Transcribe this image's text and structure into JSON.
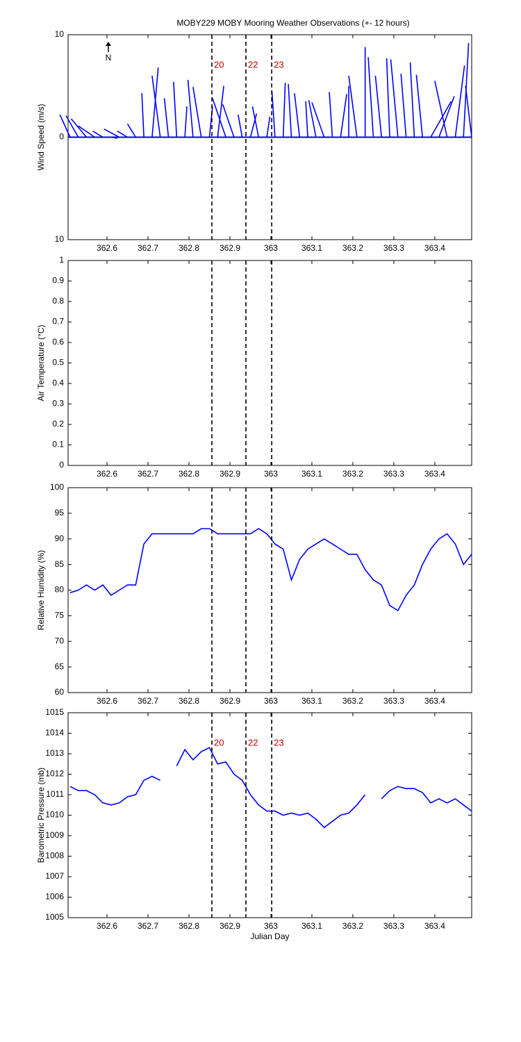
{
  "chart_data": [
    {
      "type": "stick",
      "title": "MOBY229 MOBY Mooring Weather Observations (+- 12 hours)",
      "ylabel": "Wind Speed (m/s)",
      "north_label": "N",
      "x": [
        362.51,
        362.53,
        362.55,
        362.57,
        362.59,
        362.61,
        362.63,
        362.65,
        362.67,
        362.69,
        362.71,
        362.73,
        362.75,
        362.77,
        362.79,
        362.81,
        362.83,
        362.85,
        362.87,
        362.89,
        362.91,
        362.93,
        362.95,
        362.97,
        362.99,
        363.01,
        363.03,
        363.05,
        363.07,
        363.09,
        363.11,
        363.13,
        363.15,
        363.17,
        363.19,
        363.21,
        363.23,
        363.25,
        363.27,
        363.29,
        363.31,
        363.33,
        363.35,
        363.37,
        363.39,
        363.41,
        363.43,
        363.45,
        363.47,
        363.49
      ],
      "u": [
        -1,
        -1.2,
        -1.5,
        -1.6,
        -1,
        0.6,
        -1.5,
        -1,
        -0.8,
        -0.2,
        0.6,
        -0.8,
        -0.4,
        -0.3,
        0.2,
        -0.5,
        -0.8,
        0.3,
        0.6,
        -1.3,
        -1.1,
        -0.4,
        0.6,
        -0.6,
        0.3,
        -0.3,
        0.2,
        -0.3,
        -0.5,
        -0.2,
        -0.7,
        -1.2,
        -0.3,
        0.6,
        0,
        -0.8,
        0,
        -0.5,
        -0.6,
        -0.3,
        -0.7,
        -0.5,
        -0.4,
        -0.6,
        2,
        1.5,
        -1.2,
        0.9,
        0.5,
        -0.6
      ],
      "v": [
        2.2,
        2.1,
        1.8,
        1.1,
        0.6,
        -0.1,
        0.8,
        0.6,
        1.3,
        4.3,
        6.8,
        6,
        3.8,
        5.4,
        3,
        5.6,
        4.9,
        3,
        5,
        3.8,
        3.2,
        2.2,
        2.3,
        3,
        2,
        4.5,
        5.3,
        5.2,
        4.3,
        3.5,
        3.6,
        3.4,
        4.4,
        4.2,
        5,
        6,
        8.8,
        7.8,
        6,
        7.7,
        7.6,
        6.2,
        7.3,
        6.1,
        3.5,
        4,
        5.5,
        7,
        9.2,
        5
      ],
      "color": "#0000ff",
      "xlim": [
        362.505,
        363.49
      ],
      "xticks": [
        362.6,
        362.7,
        362.8,
        362.9,
        363,
        363.1,
        363.2,
        363.3,
        363.4
      ],
      "ylim": [
        -10,
        10
      ],
      "yticks": [
        {
          "value": -10,
          "label": "10"
        },
        0,
        10
      ],
      "vlines": [
        362.856,
        362.939,
        363.002
      ],
      "vline_labels": [
        "20",
        "22",
        "23"
      ]
    },
    {
      "type": "line",
      "ylabel": "Air Temperature (°C)",
      "xlim": [
        362.505,
        363.49
      ],
      "xticks": [
        362.6,
        362.7,
        362.8,
        362.9,
        363,
        363.1,
        363.2,
        363.3,
        363.4
      ],
      "ylim": [
        0,
        1
      ],
      "yticks": [
        0,
        0.1,
        0.2,
        0.3,
        0.4,
        0.5,
        0.6,
        0.7,
        0.8,
        0.9,
        1
      ],
      "vlines": [
        362.856,
        362.939,
        363.002
      ]
    },
    {
      "type": "line",
      "ylabel": "Relative Humidity (%)",
      "color": "#0000ff",
      "x": [
        362.51,
        362.53,
        362.55,
        362.57,
        362.59,
        362.61,
        362.63,
        362.65,
        362.67,
        362.69,
        362.71,
        362.73,
        362.75,
        362.77,
        362.79,
        362.81,
        362.83,
        362.85,
        362.87,
        362.89,
        362.91,
        362.93,
        362.95,
        362.97,
        362.99,
        363.01,
        363.03,
        363.05,
        363.07,
        363.09,
        363.11,
        363.13,
        363.15,
        363.17,
        363.19,
        363.21,
        363.23,
        363.25,
        363.27,
        363.29,
        363.31,
        363.33,
        363.35,
        363.37,
        363.39,
        363.41,
        363.43,
        363.45,
        363.47,
        363.49
      ],
      "values": [
        79.5,
        80,
        81,
        80,
        81,
        79,
        80,
        81,
        81,
        89,
        91,
        91,
        91,
        91,
        91,
        91,
        92,
        92,
        91,
        91,
        91,
        91,
        91,
        92,
        91,
        89,
        88,
        82,
        86,
        88,
        89,
        90,
        89,
        88,
        87,
        87,
        84,
        82,
        81,
        77,
        76,
        79,
        81,
        85,
        88,
        90,
        91,
        89,
        85,
        87
      ],
      "xlim": [
        362.505,
        363.49
      ],
      "xticks": [
        362.6,
        362.7,
        362.8,
        362.9,
        363,
        363.1,
        363.2,
        363.3,
        363.4
      ],
      "ylim": [
        60,
        100
      ],
      "yticks": [
        60,
        65,
        70,
        75,
        80,
        85,
        90,
        95,
        100
      ],
      "vlines": [
        362.856,
        362.939,
        363.002
      ]
    },
    {
      "type": "line",
      "ylabel": "Barometric Pressure (mb)",
      "xlabel": "Julian Day",
      "color": "#0000ff",
      "x": [
        362.51,
        362.53,
        362.55,
        362.57,
        362.59,
        362.61,
        362.63,
        362.65,
        362.67,
        362.69,
        362.71,
        362.73,
        362.75,
        362.77,
        362.79,
        362.81,
        362.83,
        362.85,
        362.87,
        362.89,
        362.91,
        362.93,
        362.95,
        362.97,
        362.99,
        363.01,
        363.03,
        363.05,
        363.07,
        363.09,
        363.11,
        363.13,
        363.15,
        363.17,
        363.19,
        363.21,
        363.23,
        363.25,
        363.27,
        363.29,
        363.31,
        363.33,
        363.35,
        363.37,
        363.39,
        363.41,
        363.43,
        363.45,
        363.47,
        363.49
      ],
      "values": [
        1011.4,
        1011.2,
        1011.2,
        1011,
        1010.6,
        1010.5,
        1010.6,
        1010.9,
        1011,
        1011.7,
        1011.9,
        1011.7,
        null,
        1012.4,
        1013.2,
        1012.7,
        1013.1,
        1013.3,
        1012.5,
        1012.6,
        1012,
        1011.7,
        1011,
        1010.5,
        1010.2,
        1010.2,
        1010,
        1010.1,
        1010,
        1010.1,
        1009.8,
        1009.4,
        1009.7,
        1010,
        1010.1,
        1010.5,
        1011,
        null,
        1010.8,
        1011.2,
        1011.4,
        1011.3,
        1011.3,
        1011.1,
        1010.6,
        1010.8,
        1010.6,
        1010.8,
        1010.5,
        1010.2
      ],
      "xlim": [
        362.505,
        363.49
      ],
      "xticks": [
        362.6,
        362.7,
        362.8,
        362.9,
        363,
        363.1,
        363.2,
        363.3,
        363.4
      ],
      "ylim": [
        1005,
        1015
      ],
      "yticks": [
        1005,
        1006,
        1007,
        1008,
        1009,
        1010,
        1011,
        1012,
        1013,
        1014,
        1015
      ],
      "vlines": [
        362.856,
        362.939,
        363.002
      ],
      "vline_labels": [
        "20",
        "22",
        "23"
      ]
    }
  ]
}
